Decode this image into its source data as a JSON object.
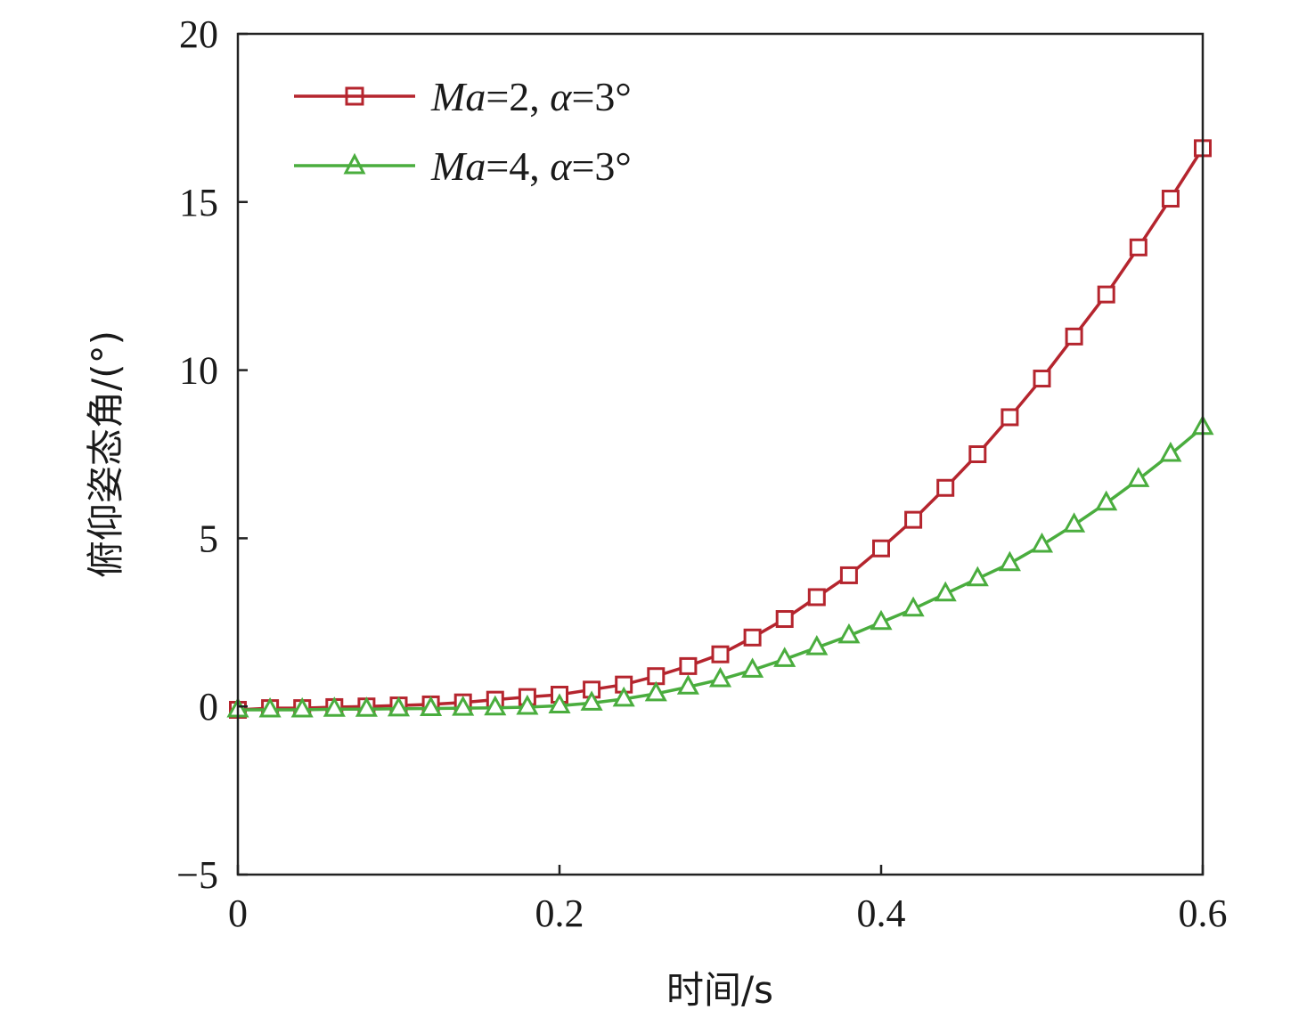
{
  "chart_data": {
    "type": "line",
    "xlabel": "时间/s",
    "ylabel": "俯仰姿态角/(°)",
    "xlim": [
      0,
      0.6
    ],
    "ylim": [
      -5,
      20
    ],
    "xticks": [
      0,
      0.2,
      0.4,
      0.6
    ],
    "xtick_labels": [
      "0",
      "0.2",
      "0.4",
      "0.6"
    ],
    "yticks": [
      -5,
      0,
      5,
      10,
      15,
      20
    ],
    "ytick_labels": [
      "−5",
      "0",
      "5",
      "10",
      "15",
      "20"
    ],
    "grid": false,
    "legend_position": "top-left",
    "series": [
      {
        "name": "Ma=2, α=3°",
        "name_parts": {
          "ma": "Ma",
          "ma_value": "=2, ",
          "alpha": "α",
          "alpha_value": "=3°"
        },
        "marker": "square",
        "color": "#b5252e",
        "x": [
          0,
          0.02,
          0.04,
          0.06,
          0.08,
          0.1,
          0.12,
          0.14,
          0.16,
          0.18,
          0.2,
          0.22,
          0.24,
          0.26,
          0.28,
          0.3,
          0.32,
          0.34,
          0.36,
          0.38,
          0.4,
          0.42,
          0.44,
          0.46,
          0.48,
          0.5,
          0.52,
          0.54,
          0.56,
          0.58,
          0.6
        ],
        "y": [
          -0.1,
          -0.05,
          -0.05,
          -0.02,
          0.0,
          0.03,
          0.06,
          0.12,
          0.2,
          0.28,
          0.35,
          0.5,
          0.65,
          0.9,
          1.2,
          1.55,
          2.05,
          2.6,
          3.25,
          3.9,
          4.7,
          5.55,
          6.5,
          7.5,
          8.6,
          9.75,
          11.0,
          12.25,
          13.65,
          15.1,
          16.6
        ]
      },
      {
        "name": "Ma=4, α=3°",
        "name_parts": {
          "ma": "Ma",
          "ma_value": "=4, ",
          "alpha": "α",
          "alpha_value": "=3°"
        },
        "marker": "triangle",
        "color": "#4aad3e",
        "x": [
          0,
          0.02,
          0.04,
          0.06,
          0.08,
          0.1,
          0.12,
          0.14,
          0.16,
          0.18,
          0.2,
          0.22,
          0.24,
          0.26,
          0.28,
          0.3,
          0.32,
          0.34,
          0.36,
          0.38,
          0.4,
          0.42,
          0.44,
          0.46,
          0.48,
          0.5,
          0.52,
          0.54,
          0.56,
          0.58,
          0.6
        ],
        "y": [
          -0.1,
          -0.1,
          -0.1,
          -0.08,
          -0.08,
          -0.07,
          -0.06,
          -0.05,
          -0.04,
          -0.02,
          0.02,
          0.1,
          0.22,
          0.38,
          0.58,
          0.8,
          1.08,
          1.4,
          1.75,
          2.1,
          2.5,
          2.9,
          3.35,
          3.8,
          4.25,
          4.8,
          5.4,
          6.05,
          6.75,
          7.5,
          8.3
        ]
      }
    ]
  }
}
